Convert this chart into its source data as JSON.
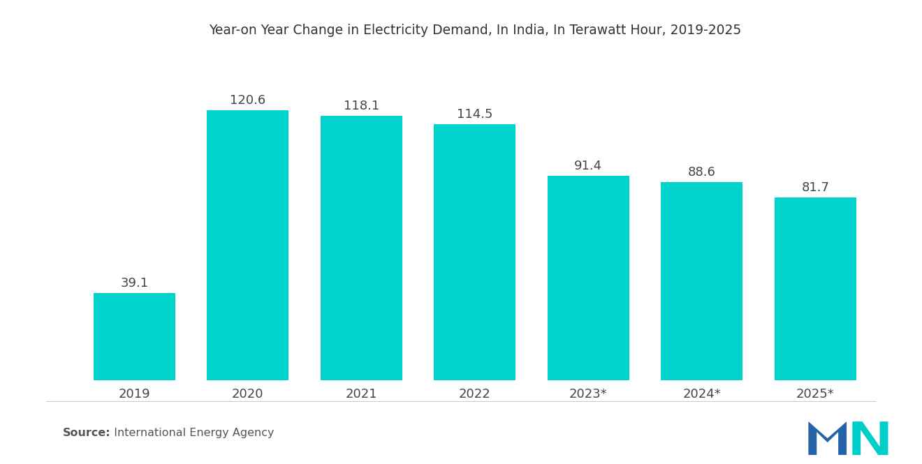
{
  "title": "Year-on Year Change in Electricity Demand, In India, In Terawatt Hour, 2019-2025",
  "categories": [
    "2019",
    "2020",
    "2021",
    "2022",
    "2023*",
    "2024*",
    "2025*"
  ],
  "values": [
    39.1,
    120.6,
    118.1,
    114.5,
    91.4,
    88.6,
    81.7
  ],
  "bar_color": "#00D4CC",
  "background_color": "#FFFFFF",
  "label_fontsize": 13,
  "title_fontsize": 13.5,
  "tick_fontsize": 13,
  "source_bold": "Source:",
  "source_normal": "  International Energy Agency",
  "ylim": [
    0,
    145
  ],
  "bar_width": 0.72,
  "logo_left_color": "#2563A8",
  "logo_right_color": "#00CEC9"
}
